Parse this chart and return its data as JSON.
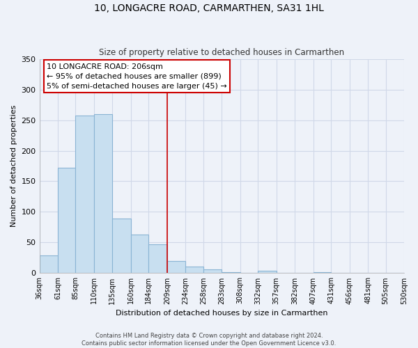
{
  "title": "10, LONGACRE ROAD, CARMARTHEN, SA31 1HL",
  "subtitle": "Size of property relative to detached houses in Carmarthen",
  "xlabel": "Distribution of detached houses by size in Carmarthen",
  "ylabel": "Number of detached properties",
  "bar_color": "#c8dff0",
  "bar_edge_color": "#8ab4d4",
  "background_color": "#eef2f9",
  "grid_color": "#d0d8e8",
  "bin_edges": [
    36,
    61,
    85,
    110,
    135,
    160,
    184,
    209,
    234,
    258,
    283,
    308,
    332,
    357,
    382,
    407,
    431,
    456,
    481,
    505,
    530
  ],
  "bin_labels": [
    "36sqm",
    "61sqm",
    "85sqm",
    "110sqm",
    "135sqm",
    "160sqm",
    "184sqm",
    "209sqm",
    "234sqm",
    "258sqm",
    "283sqm",
    "308sqm",
    "332sqm",
    "357sqm",
    "382sqm",
    "407sqm",
    "431sqm",
    "456sqm",
    "481sqm",
    "505sqm",
    "530sqm"
  ],
  "counts": [
    29,
    172,
    257,
    260,
    89,
    63,
    47,
    20,
    11,
    6,
    2,
    1,
    4,
    1,
    0,
    2,
    0,
    1,
    0,
    1
  ],
  "property_line_x": 209,
  "annotation_title": "10 LONGACRE ROAD: 206sqm",
  "annotation_line1": "← 95% of detached houses are smaller (899)",
  "annotation_line2": "5% of semi-detached houses are larger (45) →",
  "annotation_box_color": "white",
  "annotation_box_edge_color": "#cc0000",
  "vline_color": "#cc0000",
  "ylim": [
    0,
    350
  ],
  "yticks": [
    0,
    50,
    100,
    150,
    200,
    250,
    300,
    350
  ],
  "footer1": "Contains HM Land Registry data © Crown copyright and database right 2024.",
  "footer2": "Contains public sector information licensed under the Open Government Licence v3.0."
}
